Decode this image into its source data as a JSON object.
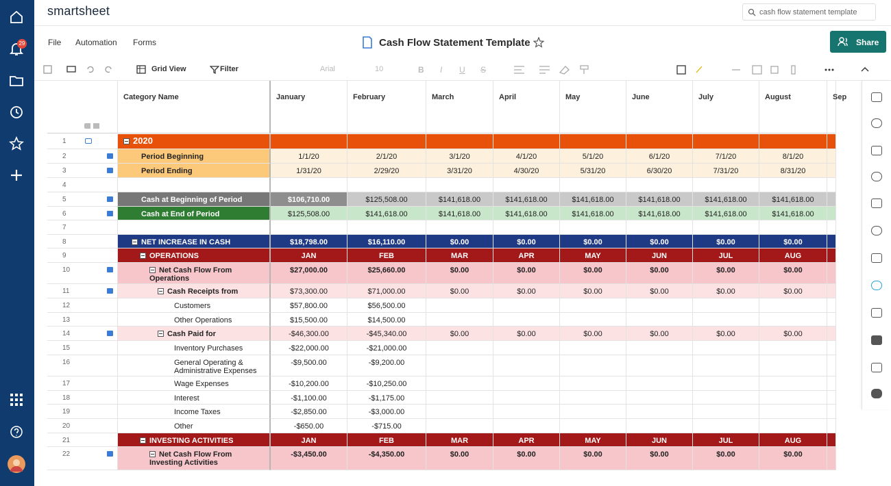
{
  "app": {
    "logo": "smartsheet",
    "search": "cash flow statement template",
    "notifications": "29"
  },
  "menu": [
    "File",
    "Automation",
    "Forms"
  ],
  "sheet": {
    "title": "Cash Flow Statement Template",
    "share": "Share"
  },
  "toolbar": {
    "view": "Grid View",
    "filter": "Filter",
    "font": "Arial",
    "size": "10",
    "format": [
      "B",
      "I",
      "U",
      "S"
    ]
  },
  "columns": [
    "Category Name",
    "January",
    "February",
    "March",
    "April",
    "May",
    "June",
    "July",
    "August",
    "Sep"
  ],
  "rows": [
    {
      "num": "1",
      "label": "2020",
      "values": []
    },
    {
      "num": "2",
      "label": "Period Beginning",
      "values": [
        "1/1/20",
        "2/1/20",
        "3/1/20",
        "4/1/20",
        "5/1/20",
        "6/1/20",
        "7/1/20",
        "8/1/20"
      ]
    },
    {
      "num": "3",
      "label": "Period Ending",
      "values": [
        "1/31/20",
        "2/29/20",
        "3/31/20",
        "4/30/20",
        "5/31/20",
        "6/30/20",
        "7/31/20",
        "8/31/20"
      ]
    },
    {
      "num": "4",
      "label": null,
      "values": []
    },
    {
      "num": "5",
      "label": "Cash at Beginning of Period",
      "values": [
        "$106,710.00",
        "$125,508.00",
        "$141,618.00",
        "$141,618.00",
        "$141,618.00",
        "$141,618.00",
        "$141,618.00",
        "$141,618.00"
      ]
    },
    {
      "num": "6",
      "label": "Cash at End of Period",
      "values": [
        "$125,508.00",
        "$141,618.00",
        "$141,618.00",
        "$141,618.00",
        "$141,618.00",
        "$141,618.00",
        "$141,618.00",
        "$141,618.00"
      ]
    },
    {
      "num": "7",
      "label": null,
      "values": []
    },
    {
      "num": "8",
      "label": "NET INCREASE IN CASH",
      "values": [
        "$18,798.00",
        "$16,110.00",
        "$0.00",
        "$0.00",
        "$0.00",
        "$0.00",
        "$0.00",
        "$0.00"
      ]
    },
    {
      "num": "9",
      "label": "OPERATIONS",
      "values": [
        "JAN",
        "FEB",
        "MAR",
        "APR",
        "MAY",
        "JUN",
        "JUL",
        "AUG"
      ]
    },
    {
      "num": "10",
      "label": "Net Cash Flow From Operations",
      "values": [
        "$27,000.00",
        "$25,660.00",
        "$0.00",
        "$0.00",
        "$0.00",
        "$0.00",
        "$0.00",
        "$0.00"
      ]
    },
    {
      "num": "11",
      "label": "Cash Receipts from",
      "values": [
        "$73,300.00",
        "$71,000.00",
        "$0.00",
        "$0.00",
        "$0.00",
        "$0.00",
        "$0.00",
        "$0.00"
      ]
    },
    {
      "num": "12",
      "label": "Customers",
      "values": [
        "$57,800.00",
        "$56,500.00"
      ]
    },
    {
      "num": "13",
      "label": "Other Operations",
      "values": [
        "$15,500.00",
        "$14,500.00"
      ]
    },
    {
      "num": "14",
      "label": "Cash Paid for",
      "values": [
        "-$46,300.00",
        "-$45,340.00",
        "$0.00",
        "$0.00",
        "$0.00",
        "$0.00",
        "$0.00",
        "$0.00"
      ]
    },
    {
      "num": "15",
      "label": "Inventory Purchases",
      "values": [
        "-$22,000.00",
        "-$21,000.00"
      ]
    },
    {
      "num": "16",
      "label": "General Operating & Administrative Expenses",
      "values": [
        "-$9,500.00",
        "-$9,200.00"
      ]
    },
    {
      "num": "17",
      "label": "Wage Expenses",
      "values": [
        "-$10,200.00",
        "-$10,250.00"
      ]
    },
    {
      "num": "18",
      "label": "Interest",
      "values": [
        "-$1,100.00",
        "-$1,175.00"
      ]
    },
    {
      "num": "19",
      "label": "Income Taxes",
      "values": [
        "-$2,850.00",
        "-$3,000.00"
      ]
    },
    {
      "num": "20",
      "label": "Other",
      "values": [
        "-$650.00",
        "-$715.00"
      ]
    },
    {
      "num": "21",
      "label": "INVESTING ACTIVITIES",
      "values": [
        "JAN",
        "FEB",
        "MAR",
        "APR",
        "MAY",
        "JUN",
        "JUL",
        "AUG"
      ]
    },
    {
      "num": "22",
      "label": "Net Cash Flow From Investing Activities",
      "values": [
        "-$3,450.00",
        "-$4,350.00",
        "$0.00",
        "$0.00",
        "$0.00",
        "$0.00",
        "$0.00",
        "$0.00"
      ]
    }
  ]
}
